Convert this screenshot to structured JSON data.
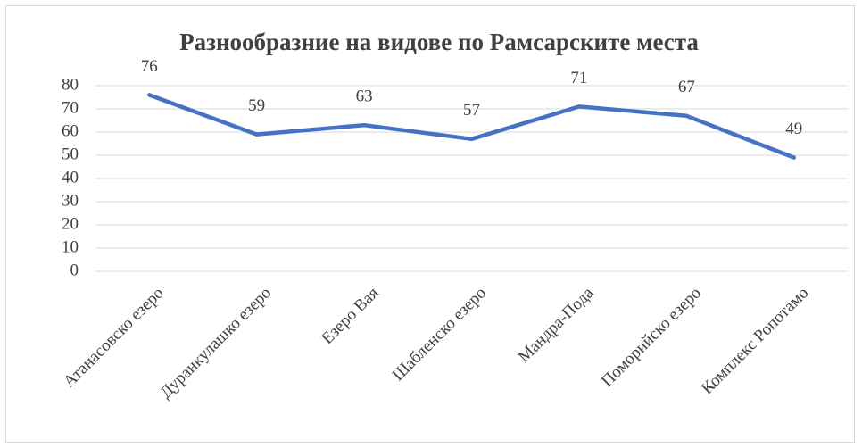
{
  "chart_data": {
    "type": "line",
    "title": "Разнообразние на видове по Рамсарските места",
    "categories": [
      "Атанасовско езеро",
      "Дуранкулашко езеро",
      "Езеро Вая",
      "Шабленско езеро",
      "Мандра-Пода",
      "Поморийско езеро",
      "Комплекс Ропотамо"
    ],
    "values": [
      76,
      59,
      63,
      57,
      71,
      67,
      49
    ],
    "color": "#4472c4",
    "ylim": [
      0,
      80
    ],
    "yticks": [
      0,
      10,
      20,
      30,
      40,
      50,
      60,
      70,
      80
    ],
    "grid": true,
    "data_labels": true
  }
}
